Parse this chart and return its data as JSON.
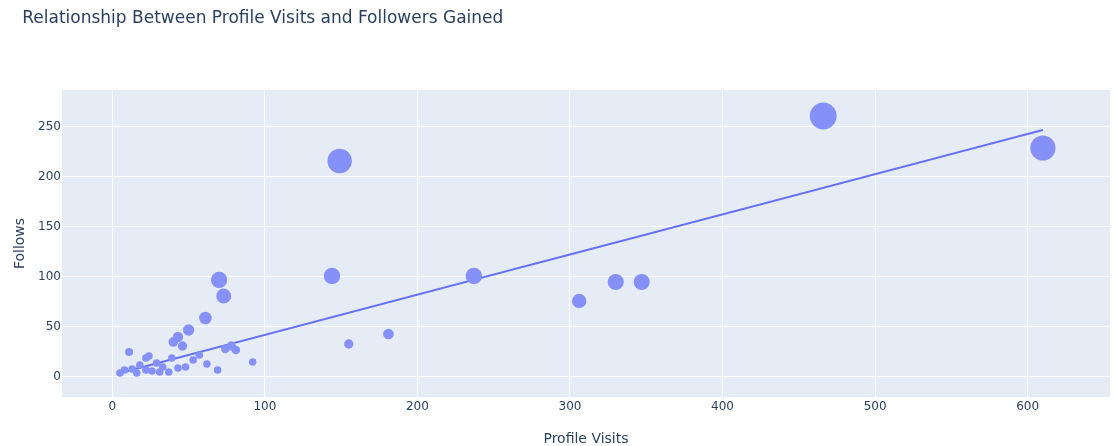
{
  "chart_data": {
    "type": "bubble",
    "title": "Relationship Between Profile Visits and Followers Gained",
    "xlabel": "Profile Visits",
    "ylabel": "Follows",
    "series": [
      {
        "type": "line",
        "color": "#636efa",
        "x": [
          5,
          610
        ],
        "values": [
          3,
          246
        ]
      },
      {
        "color": "#8590f9",
        "x": [
          466,
          610,
          149,
          144,
          237,
          306,
          330,
          347,
          155,
          181,
          70,
          73,
          61,
          50,
          43,
          40,
          46,
          11,
          22,
          24,
          39,
          57,
          74,
          78,
          81,
          53,
          92,
          62,
          18,
          29,
          33,
          43,
          48,
          69,
          8,
          13,
          22,
          26,
          31,
          37,
          16,
          5
        ],
        "values": [
          260,
          228,
          215,
          100,
          100,
          75,
          94,
          94,
          32,
          42,
          96,
          80,
          58,
          46,
          39,
          34,
          30,
          24,
          18,
          20,
          18,
          21,
          27,
          30,
          26,
          16,
          14,
          12,
          11,
          13,
          9,
          8,
          9,
          6,
          6,
          7,
          6,
          5,
          4,
          4,
          3,
          3
        ],
        "sizes": [
          1,
          0.88,
          0.83,
          0.38,
          0.38,
          0.29,
          0.36,
          0.36,
          0.12,
          0.16,
          0.37,
          0.31,
          0.22,
          0.18,
          0.15,
          0.13,
          0.12,
          0.09,
          0.08,
          0.08,
          0.08,
          0.08,
          0.1,
          0.12,
          0.1,
          0.08,
          0.08,
          0.08,
          0.08,
          0.08,
          0.08,
          0.08,
          0.08,
          0.08,
          0.08,
          0.08,
          0.08,
          0.08,
          0.08,
          0.08,
          0.08,
          0.08
        ]
      }
    ],
    "xlim": [
      -33,
      654
    ],
    "ylim": [
      -21,
      286
    ],
    "xticks": [
      0,
      100,
      200,
      300,
      400,
      500,
      600
    ],
    "yticks": [
      0,
      50,
      100,
      150,
      200,
      250
    ],
    "grid": true,
    "line_style": "solid"
  }
}
